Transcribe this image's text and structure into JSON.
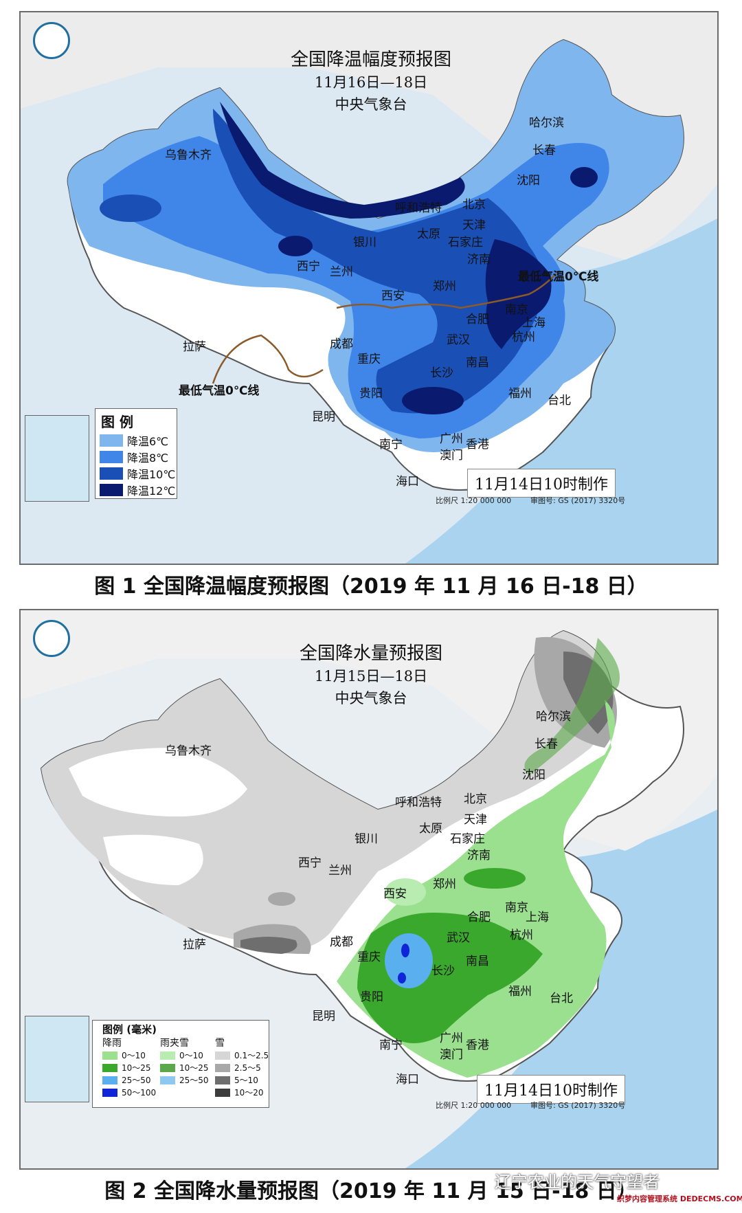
{
  "map1": {
    "title": "全国降温幅度预报图",
    "date_range": "11月16日—18日",
    "issuer": "中央气象台",
    "made_time": "11月14日10时制作",
    "scale_text": "比例尺 1:20 000 000",
    "review_no": "审图号: GS (2017) 3320号",
    "zero_line_label": "最低气温0℃线",
    "legend": {
      "title": "图 例",
      "items": [
        {
          "label": "降温6℃",
          "color": "#7fb6ee"
        },
        {
          "label": "降温8℃",
          "color": "#3f86e8"
        },
        {
          "label": "降温10℃",
          "color": "#1a4fb5"
        },
        {
          "label": "降温12℃",
          "color": "#0a1a6e"
        }
      ]
    },
    "cities": [
      "哈尔滨",
      "长春",
      "乌鲁木齐",
      "沈阳",
      "呼和浩特",
      "北京",
      "天津",
      "太原",
      "石家庄",
      "银川",
      "济南",
      "西宁",
      "兰州",
      "西安",
      "郑州",
      "南京",
      "上海",
      "合肥",
      "杭州",
      "拉萨",
      "成都",
      "武汉",
      "重庆",
      "南昌",
      "长沙",
      "福州",
      "贵阳",
      "台北",
      "昆明",
      "广州",
      "南宁",
      "香港",
      "澳门",
      "海口"
    ]
  },
  "caption1": "图 1  全国降温幅度预报图（2019 年 11 月 16 日-18 日）",
  "map2": {
    "title": "全国降水量预报图",
    "date_range": "11月15日—18日",
    "issuer": "中央气象台",
    "made_time": "11月14日10时制作",
    "scale_text": "比例尺 1:20 000 000",
    "review_no": "审图号: GS (2017) 3320号",
    "legend": {
      "title": "图例 (毫米)",
      "col_rain": "降雨",
      "col_sleet": "雨夹雪",
      "col_snow": "雪",
      "rain": [
        {
          "label": "0～10",
          "color": "#9be08f"
        },
        {
          "label": "10～25",
          "color": "#3aa82c"
        },
        {
          "label": "25～50",
          "color": "#5ab0ee"
        },
        {
          "label": "50～100",
          "color": "#1024d8"
        }
      ],
      "sleet": [
        {
          "label": "0～10",
          "color": "#b9ecb0"
        },
        {
          "label": "10～25",
          "color": "#5aa84a"
        },
        {
          "label": "25～50",
          "color": "#8ec8f0"
        }
      ],
      "snow": [
        {
          "label": "0.1～2.5",
          "color": "#d6d6d6"
        },
        {
          "label": "2.5～5",
          "color": "#a8a8a8"
        },
        {
          "label": "5～10",
          "color": "#6e6e6e"
        },
        {
          "label": "10～20",
          "color": "#3c3c3c"
        }
      ]
    },
    "cities": [
      "哈尔滨",
      "长春",
      "乌鲁木齐",
      "沈阳",
      "呼和浩特",
      "北京",
      "天津",
      "太原",
      "石家庄",
      "银川",
      "济南",
      "西宁",
      "兰州",
      "西安",
      "郑州",
      "南京",
      "合肥",
      "上海",
      "杭州",
      "拉萨",
      "成都",
      "武汉",
      "重庆",
      "南昌",
      "长沙",
      "福州",
      "台北",
      "贵阳",
      "昆明",
      "广州",
      "南宁",
      "香港",
      "澳门",
      "海口"
    ]
  },
  "caption2": "图 2  全国降水量预报图（2019 年 11 月 15 日-18 日）",
  "watermark": "辽宁农业的天气守望者",
  "watermark_site": "织梦内容管理系统 DEDECMS.COM"
}
